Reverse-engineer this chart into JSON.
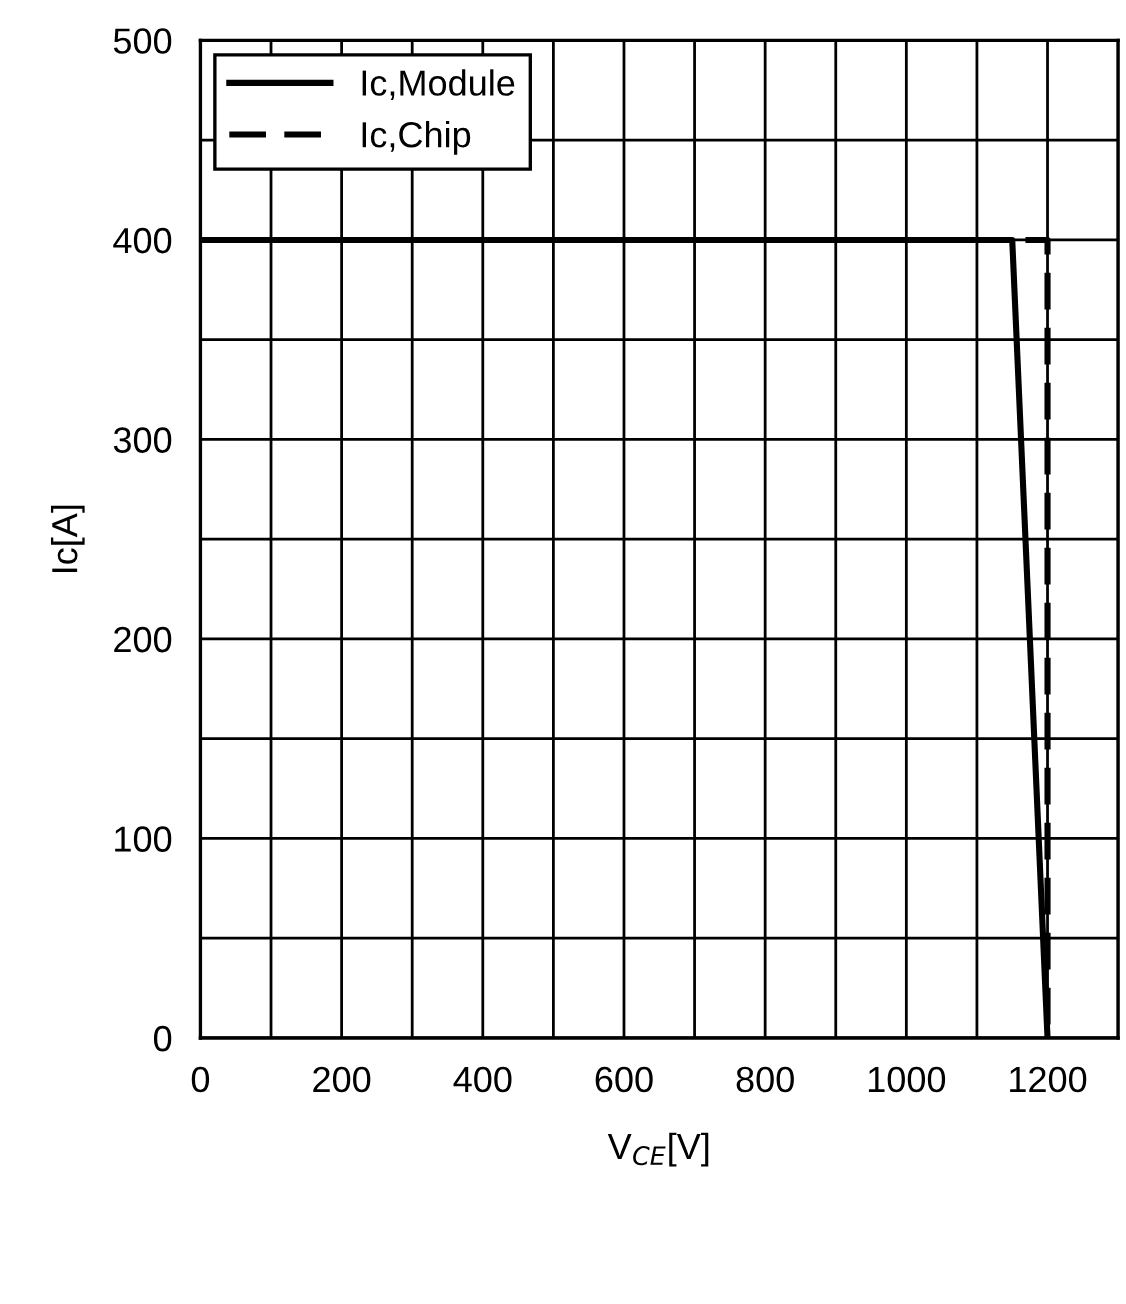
{
  "chart_data": {
    "type": "line",
    "xlabel": "V$_{CE}$[V]",
    "ylabel": "Ic[A]",
    "xlim": [
      0,
      1300
    ],
    "ylim": [
      0,
      500
    ],
    "xticks": [
      0,
      {
        "value": 100,
        "label": null
      },
      200,
      {
        "value": 300,
        "label": null
      },
      400,
      {
        "value": 500,
        "label": null
      },
      600,
      {
        "value": 700,
        "label": null
      },
      800,
      {
        "value": 900,
        "label": null
      },
      1000,
      {
        "value": 1100,
        "label": null
      },
      1200,
      {
        "value": 1300,
        "label": null
      }
    ],
    "yticks": [
      0,
      {
        "value": 50,
        "label": null
      },
      100,
      {
        "value": 150,
        "label": null
      },
      200,
      {
        "value": 250,
        "label": null
      },
      300,
      {
        "value": 350,
        "label": null
      },
      400,
      {
        "value": 450,
        "label": null
      },
      500
    ],
    "grid": true,
    "legend": "top left",
    "series": [
      {
        "name": "Ic,Module",
        "color": "#000000",
        "line_style": "solid",
        "x": [
          0,
          1150,
          1200
        ],
        "values": [
          400,
          400,
          0
        ]
      },
      {
        "name": "Ic,Chip",
        "color": "#000000",
        "line_style": "dashed",
        "x": [
          0,
          1200,
          1200
        ],
        "values": [
          400,
          400,
          0
        ]
      }
    ]
  }
}
